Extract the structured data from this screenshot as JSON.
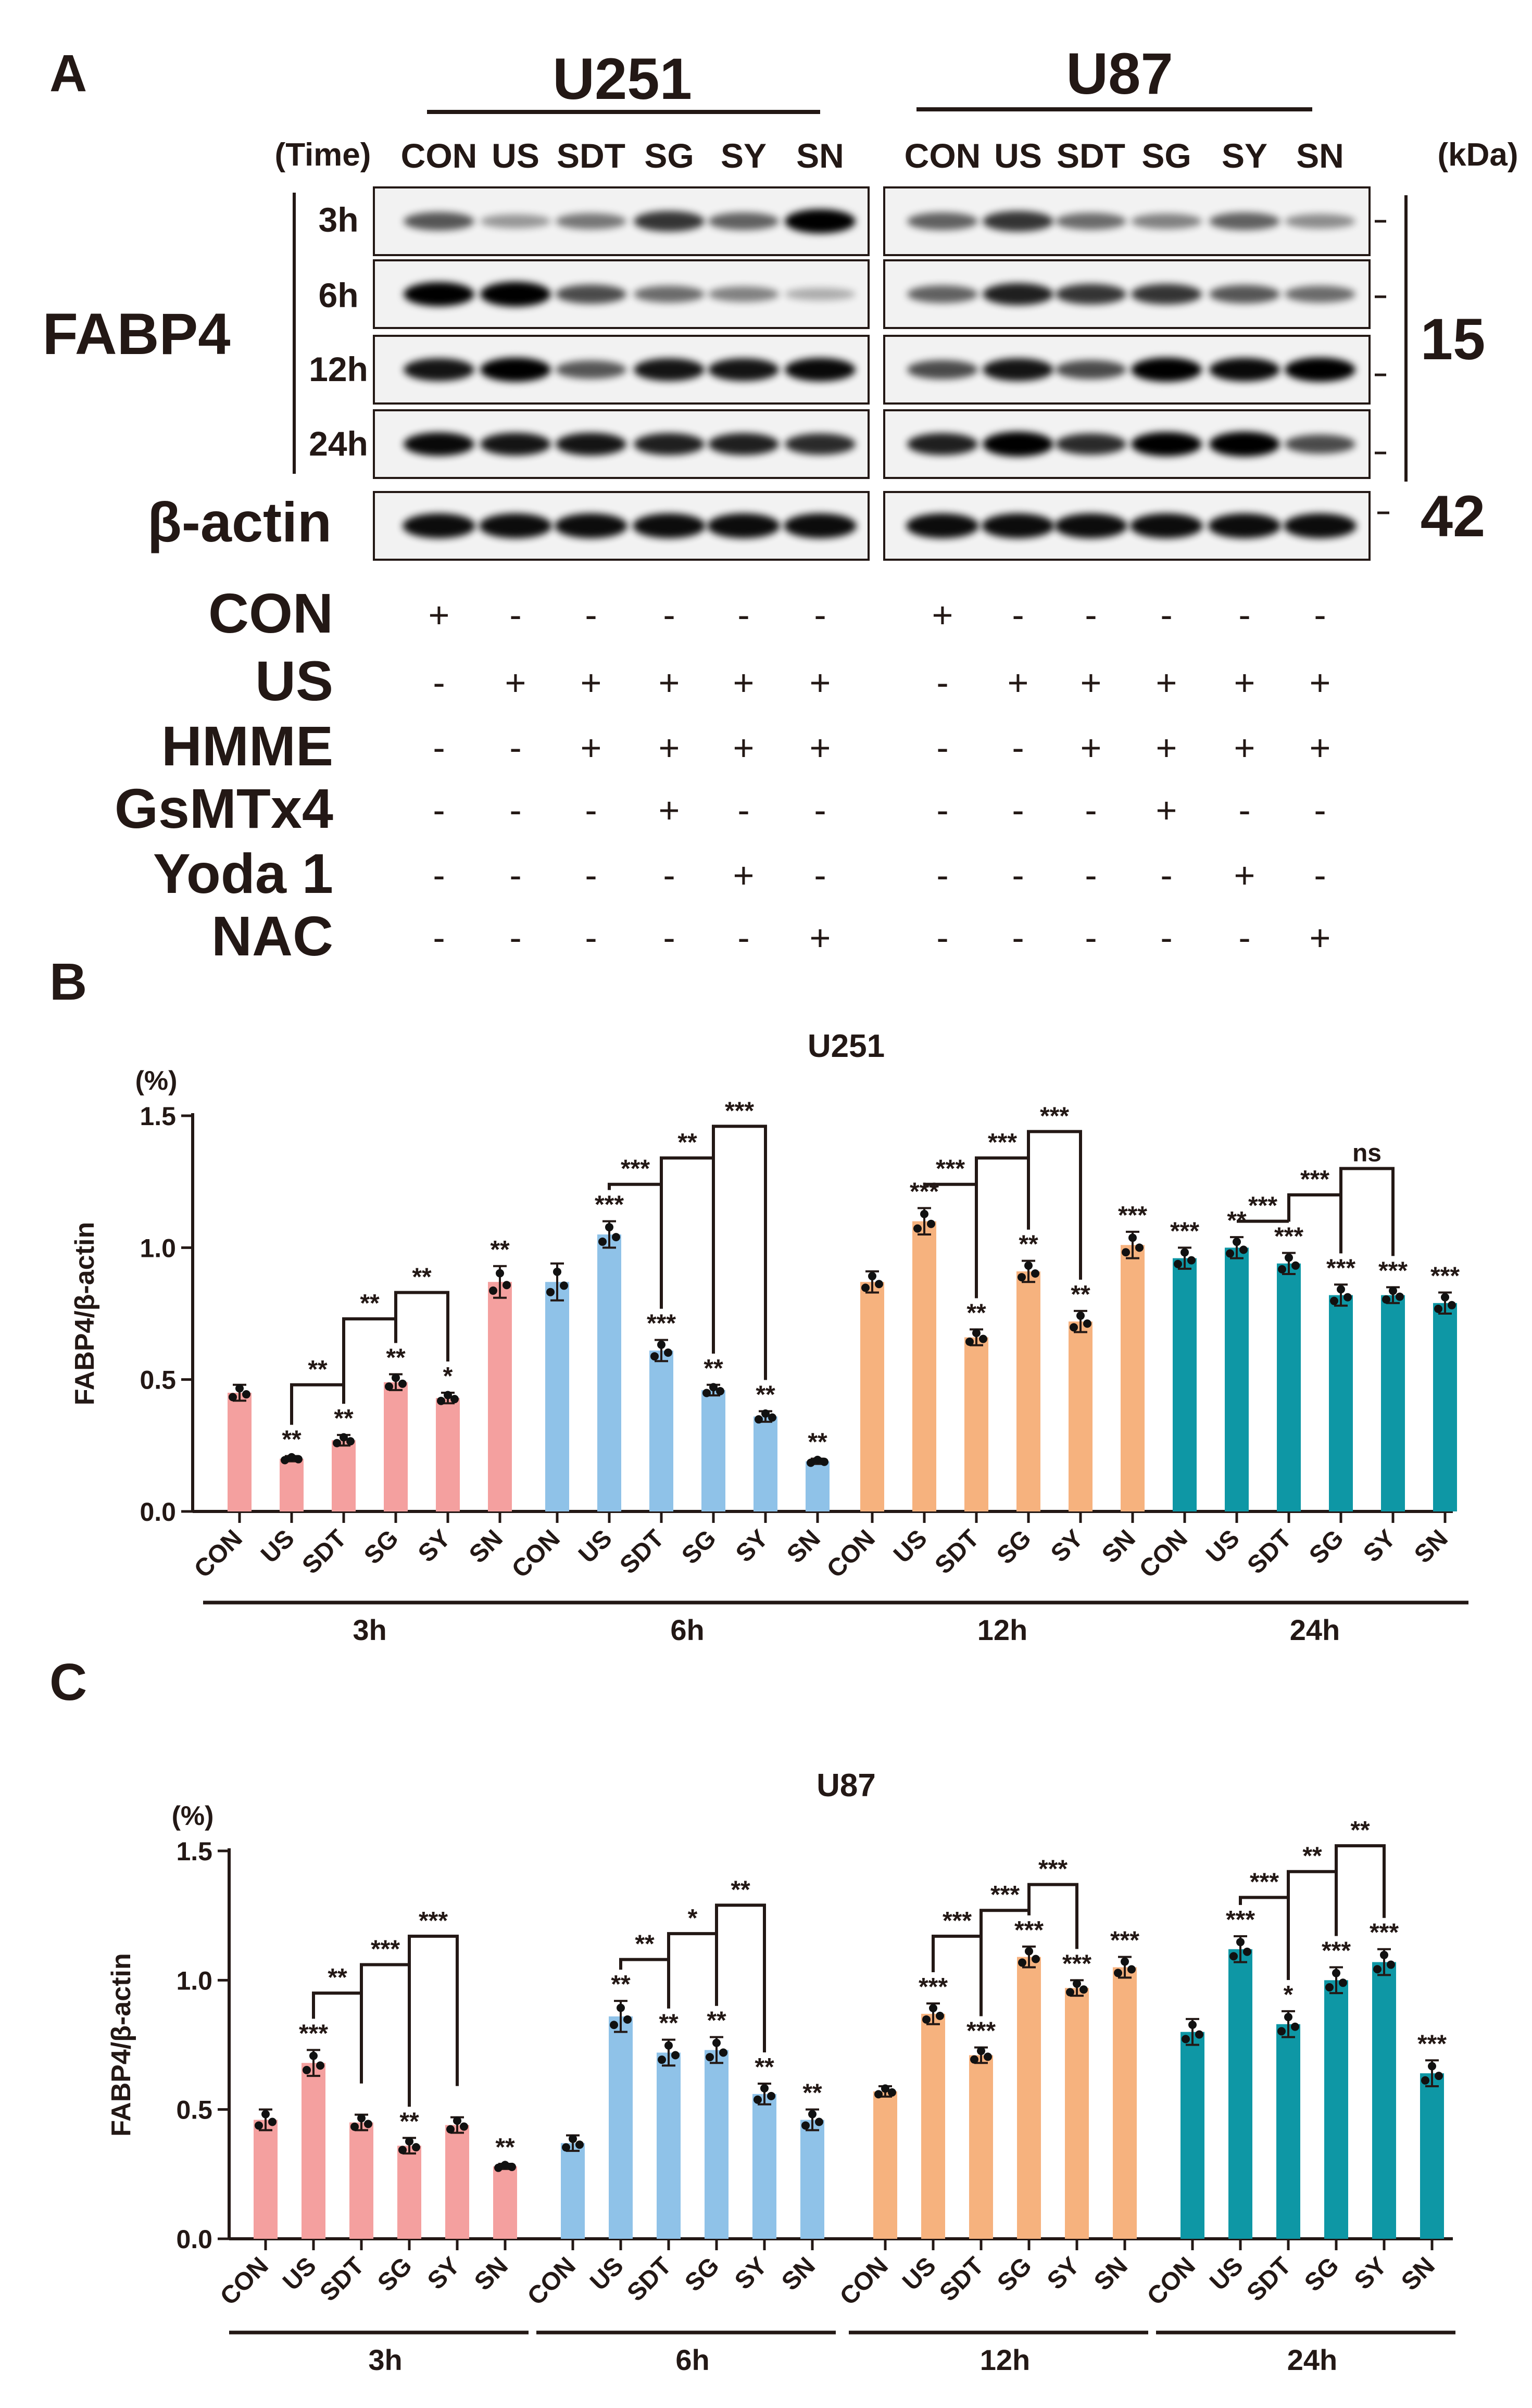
{
  "panelA": {
    "letter": "A",
    "cell_lines": [
      "U251",
      "U87"
    ],
    "time_header": "(Time)",
    "kda_header": "(kDa)",
    "lane_labels": [
      "CON",
      "US",
      "SDT",
      "SG",
      "SY",
      "SN"
    ],
    "fabp4_label": "FABP4",
    "actin_label": "β-actin",
    "time_points": [
      "3h",
      "6h",
      "12h",
      "24h"
    ],
    "kda_values": [
      "15",
      "42"
    ],
    "treatment_rows": [
      {
        "name": "CON",
        "signs": [
          "+",
          "-",
          "-",
          "-",
          "-",
          "-"
        ]
      },
      {
        "name": "US",
        "signs": [
          "-",
          "+",
          "+",
          "+",
          "+",
          "+"
        ]
      },
      {
        "name": "HMME",
        "signs": [
          "-",
          "-",
          "+",
          "+",
          "+",
          "+"
        ]
      },
      {
        "name": "GsMTx4",
        "signs": [
          "-",
          "-",
          "-",
          "+",
          "-",
          "-"
        ]
      },
      {
        "name": "Yoda 1",
        "signs": [
          "-",
          "-",
          "-",
          "-",
          "+",
          "-"
        ]
      },
      {
        "name": "NAC",
        "signs": [
          "-",
          "-",
          "-",
          "-",
          "-",
          "+"
        ]
      }
    ],
    "band_intensity": {
      "U251": [
        [
          0.55,
          0.25,
          0.4,
          0.7,
          0.5,
          0.95
        ],
        [
          0.95,
          1.0,
          0.6,
          0.45,
          0.35,
          0.15
        ],
        [
          0.85,
          0.95,
          0.55,
          0.85,
          0.85,
          0.9
        ],
        [
          0.9,
          0.85,
          0.85,
          0.8,
          0.8,
          0.75
        ]
      ],
      "U87": [
        [
          0.5,
          0.7,
          0.45,
          0.35,
          0.5,
          0.3
        ],
        [
          0.5,
          0.8,
          0.7,
          0.7,
          0.55,
          0.45
        ],
        [
          0.6,
          0.85,
          0.6,
          0.95,
          0.9,
          0.95
        ],
        [
          0.8,
          1.0,
          0.75,
          0.95,
          1.0,
          0.6
        ]
      ],
      "actin": [
        0.95,
        0.95,
        0.95,
        0.95,
        0.95,
        0.95
      ]
    }
  },
  "colors": {
    "3h": "#f4a09f",
    "6h": "#8fc2e8",
    "12h": "#f6b27e",
    "24h": "#0e97a5",
    "text": "#231815"
  },
  "chart_data": [
    {
      "panel": "B",
      "type": "bar",
      "title": "U251",
      "ylabel": "FABP4/β-actin",
      "yunit": "(%)",
      "ylim": [
        0,
        1.5
      ],
      "yticks": [
        "0.0",
        "0.5",
        "1.0",
        "1.5"
      ],
      "group_labels": [
        "3h",
        "6h",
        "12h",
        "24h"
      ],
      "categories": [
        "CON",
        "US",
        "SDT",
        "SG",
        "SY",
        "SN"
      ],
      "series": [
        {
          "group": "3h",
          "values": [
            0.45,
            0.2,
            0.27,
            0.49,
            0.43,
            0.87
          ],
          "errors": [
            0.03,
            0.01,
            0.02,
            0.03,
            0.02,
            0.06
          ],
          "stars": [
            "",
            "**",
            "**",
            "**",
            "*",
            "**"
          ]
        },
        {
          "group": "6h",
          "values": [
            0.87,
            1.05,
            0.61,
            0.46,
            0.36,
            0.19
          ],
          "errors": [
            0.07,
            0.05,
            0.04,
            0.02,
            0.02,
            0.01
          ],
          "stars": [
            "",
            "***",
            "***",
            "**",
            "**",
            "**"
          ]
        },
        {
          "group": "12h",
          "values": [
            0.87,
            1.1,
            0.66,
            0.91,
            0.72,
            1.01
          ],
          "errors": [
            0.04,
            0.05,
            0.03,
            0.04,
            0.04,
            0.05
          ],
          "stars": [
            "",
            "***",
            "**",
            "**",
            "**",
            "***"
          ]
        },
        {
          "group": "24h",
          "values": [
            0.96,
            1.0,
            0.94,
            0.82,
            0.82,
            0.79
          ],
          "errors": [
            0.04,
            0.04,
            0.04,
            0.04,
            0.03,
            0.04
          ],
          "stars": [
            "***",
            "**",
            "***",
            "***",
            "***",
            "***"
          ]
        }
      ],
      "brackets": [
        {
          "group": 0,
          "from": 1,
          "to": 2,
          "y": 0.48,
          "label": "**"
        },
        {
          "group": 0,
          "from": 2,
          "to": 3,
          "y": 0.73,
          "label": "**"
        },
        {
          "group": 0,
          "from": 3,
          "to": 4,
          "y": 0.83,
          "label": "**"
        },
        {
          "group": 1,
          "from": 1,
          "to": 2,
          "y": 1.24,
          "label": "***"
        },
        {
          "group": 1,
          "from": 2,
          "to": 3,
          "y": 1.34,
          "label": "**"
        },
        {
          "group": 1,
          "from": 3,
          "to": 4,
          "y": 1.46,
          "label": "***"
        },
        {
          "group": 2,
          "from": 1,
          "to": 2,
          "y": 1.24,
          "label": "***"
        },
        {
          "group": 2,
          "from": 2,
          "to": 3,
          "y": 1.34,
          "label": "***"
        },
        {
          "group": 2,
          "from": 3,
          "to": 4,
          "y": 1.44,
          "label": "***"
        },
        {
          "group": 3,
          "from": 1,
          "to": 2,
          "y": 1.1,
          "label": "***"
        },
        {
          "group": 3,
          "from": 2,
          "to": 3,
          "y": 1.2,
          "label": "***"
        },
        {
          "group": 3,
          "from": 3,
          "to": 4,
          "y": 1.3,
          "label": "ns"
        }
      ]
    },
    {
      "panel": "C",
      "type": "bar",
      "title": "U87",
      "ylabel": "FABP4/β-actin",
      "yunit": "(%)",
      "ylim": [
        0,
        1.5
      ],
      "yticks": [
        "0.0",
        "0.5",
        "1.0",
        "1.5"
      ],
      "group_labels": [
        "3h",
        "6h",
        "12h",
        "24h"
      ],
      "categories": [
        "CON",
        "US",
        "SDT",
        "SG",
        "SY",
        "SN"
      ],
      "series": [
        {
          "group": "3h",
          "values": [
            0.46,
            0.68,
            0.45,
            0.36,
            0.44,
            0.28
          ],
          "errors": [
            0.04,
            0.05,
            0.03,
            0.03,
            0.03,
            0.01
          ],
          "stars": [
            "",
            "***",
            "",
            "**",
            "",
            "**"
          ]
        },
        {
          "group": "6h",
          "values": [
            0.37,
            0.86,
            0.72,
            0.73,
            0.56,
            0.46
          ],
          "errors": [
            0.03,
            0.06,
            0.05,
            0.05,
            0.04,
            0.04
          ],
          "stars": [
            "",
            "**",
            "**",
            "**",
            "**",
            "**"
          ]
        },
        {
          "group": "12h",
          "values": [
            0.57,
            0.87,
            0.71,
            1.09,
            0.97,
            1.05
          ],
          "errors": [
            0.02,
            0.04,
            0.03,
            0.04,
            0.03,
            0.04
          ],
          "stars": [
            "",
            "***",
            "***",
            "***",
            "***",
            "***"
          ]
        },
        {
          "group": "24h",
          "values": [
            0.8,
            1.12,
            0.83,
            1.0,
            1.07,
            0.64
          ],
          "errors": [
            0.05,
            0.05,
            0.05,
            0.05,
            0.05,
            0.05
          ],
          "stars": [
            "",
            "***",
            "*",
            "***",
            "***",
            "***"
          ]
        }
      ],
      "brackets": [
        {
          "group": 0,
          "from": 1,
          "to": 2,
          "y": 0.95,
          "label": "**"
        },
        {
          "group": 0,
          "from": 2,
          "to": 3,
          "y": 1.06,
          "label": "***"
        },
        {
          "group": 0,
          "from": 3,
          "to": 4,
          "y": 1.17,
          "label": "***"
        },
        {
          "group": 1,
          "from": 1,
          "to": 2,
          "y": 1.08,
          "label": "**"
        },
        {
          "group": 1,
          "from": 2,
          "to": 3,
          "y": 1.18,
          "label": "*"
        },
        {
          "group": 1,
          "from": 3,
          "to": 4,
          "y": 1.29,
          "label": "**"
        },
        {
          "group": 2,
          "from": 1,
          "to": 2,
          "y": 1.17,
          "label": "***"
        },
        {
          "group": 2,
          "from": 2,
          "to": 3,
          "y": 1.27,
          "label": "***"
        },
        {
          "group": 2,
          "from": 3,
          "to": 4,
          "y": 1.37,
          "label": "***"
        },
        {
          "group": 3,
          "from": 1,
          "to": 2,
          "y": 1.32,
          "label": "***"
        },
        {
          "group": 3,
          "from": 2,
          "to": 3,
          "y": 1.42,
          "label": "**"
        },
        {
          "group": 3,
          "from": 3,
          "to": 4,
          "y": 1.52,
          "label": "**"
        }
      ]
    }
  ],
  "panelB_letter": "B",
  "panelC_letter": "C"
}
